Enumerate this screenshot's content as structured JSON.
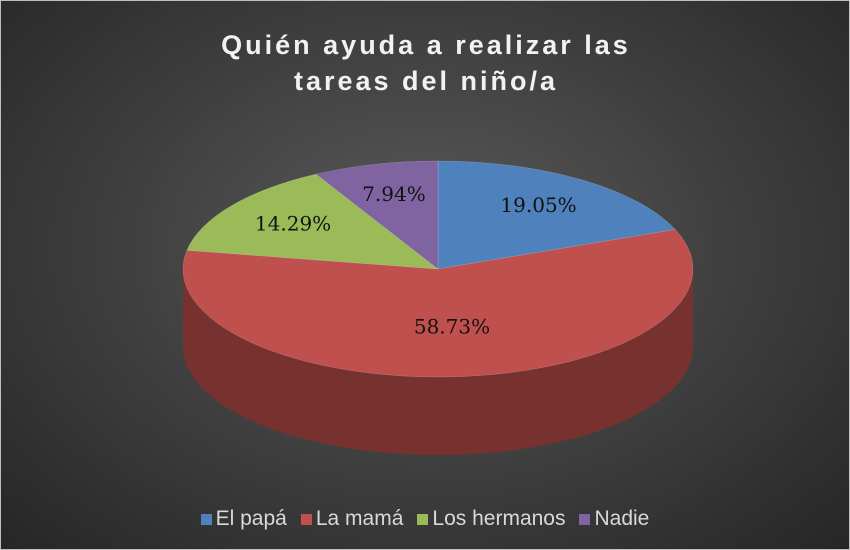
{
  "chart_data": {
    "type": "pie",
    "title": "Quién ayuda a realizar las tareas del niño/a",
    "categories": [
      "El papá",
      "La mamá",
      "Los hermanos",
      "Nadie"
    ],
    "values": [
      19.05,
      58.73,
      14.29,
      7.94
    ],
    "value_labels": [
      "19.05%",
      "58.73%",
      "14.29%",
      "7.94%"
    ],
    "colors": [
      "#4f81bd",
      "#c0504d",
      "#9bbb59",
      "#8064a2"
    ],
    "legend": "bottom"
  }
}
